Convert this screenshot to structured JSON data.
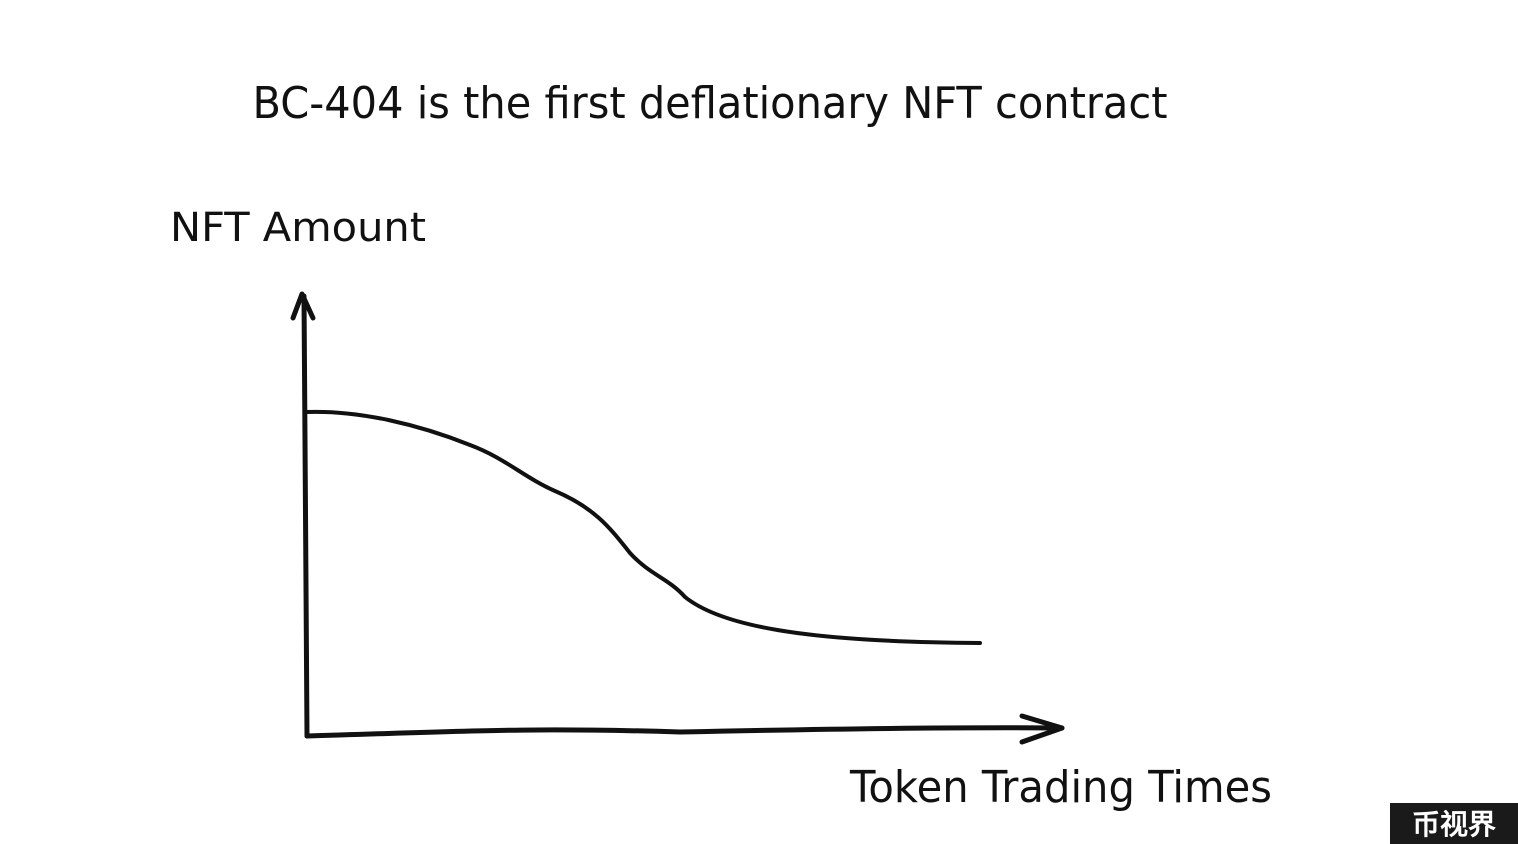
{
  "title": "BC-404 is the first deflationary NFT contract",
  "axes": {
    "y_label": "NFT Amount",
    "x_label": "Token Trading Times"
  },
  "watermark": "币视界"
}
